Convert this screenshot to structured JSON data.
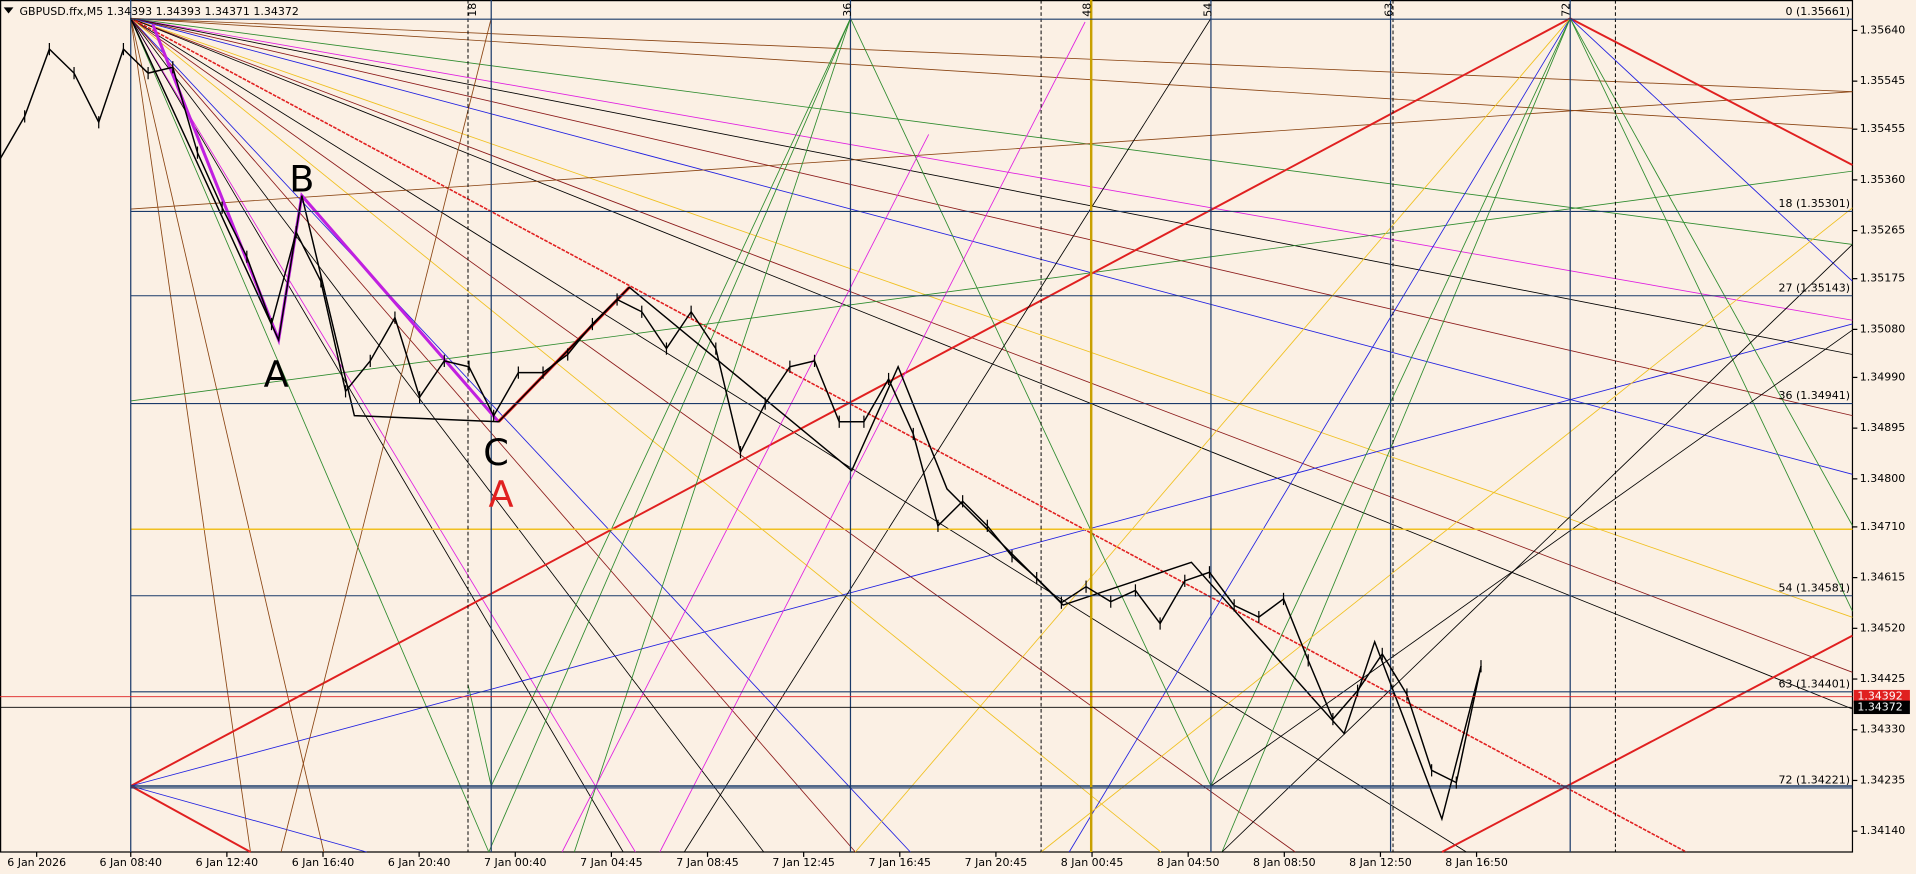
{
  "chart_data": {
    "type": "line",
    "title": "GBPUSD.ffx,M5  1.34393 1.34393 1.34371 1.34372",
    "color": "#000000",
    "values": [
      1.35399,
      1.35479,
      1.35605,
      1.3556,
      1.35468,
      1.35605,
      1.3556,
      1.35571,
      1.35411,
      1.35308,
      1.35216,
      1.3509,
      1.35262,
      1.3517,
      1.34964,
      1.35021,
      1.35102,
      1.34953,
      1.35021,
      1.3501,
      1.34918,
      1.34999,
      1.34999,
      1.35033,
      1.3509,
      1.35136,
      1.35113,
      1.35044,
      1.35113,
      1.35044,
      1.3485,
      1.34941,
      1.3501,
      1.35021,
      1.34907,
      1.34907,
      1.34987,
      1.34884,
      1.34712,
      1.34758,
      1.34712,
      1.34655,
      1.34614,
      1.34568,
      1.34598,
      1.3457,
      1.34591,
      1.34529,
      1.34609,
      1.34625,
      1.34563,
      1.34541,
      1.34575,
      1.3446,
      1.3435,
      1.34403,
      1.34472,
      1.34396,
      1.34254,
      1.34231,
      1.34449
    ],
    "x_tick_labels": [
      "6 Jan 2026",
      "6 Jan 08:40",
      "6 Jan 12:40",
      "6 Jan 16:40",
      "6 Jan 20:40",
      "7 Jan 00:40",
      "7 Jan 04:45",
      "7 Jan 08:45",
      "7 Jan 12:45",
      "7 Jan 16:45",
      "7 Jan 20:45",
      "8 Jan 00:45",
      "8 Jan 04:50",
      "8 Jan 08:50",
      "8 Jan 12:50",
      "8 Jan 16:50"
    ],
    "ylim": [
      1.34101,
      1.35697
    ],
    "yticks": [
      {
        "value": 1.3564,
        "label": "1.35640"
      },
      1.35545,
      1.35455,
      {
        "value": 1.3536,
        "label": "1.35360"
      },
      1.35265,
      1.35175,
      {
        "value": 1.3508,
        "label": "1.35080"
      },
      {
        "value": 1.3499,
        "label": "1.34990"
      },
      1.34895,
      {
        "value": 1.348,
        "label": "1.34800"
      },
      {
        "value": 1.3471,
        "label": "1.34710"
      },
      1.34615,
      {
        "value": 1.3452,
        "label": "1.34520"
      },
      1.34425,
      {
        "value": 1.3433,
        "label": "1.34330"
      },
      1.34235,
      {
        "value": 1.3414,
        "label": "1.34140"
      }
    ],
    "levels": [
      {
        "value": 1.35661,
        "label": "0 (1.35661)"
      },
      {
        "value": 1.35301,
        "label": "18 (1.35301)"
      },
      {
        "value": 1.35143,
        "label": "27 (1.35143)"
      },
      {
        "value": 1.34941,
        "label": "36 (1.34941)"
      },
      {
        "value": 1.34581,
        "label": "54 (1.34581)"
      },
      {
        "value": 1.34401,
        "label": "63 (1.34401)"
      },
      {
        "value": 1.34221,
        "label": "72 (1.34221)"
      }
    ],
    "last_prices": [
      {
        "value": 1.34392,
        "color": "#e02020"
      },
      {
        "value": 1.34372,
        "color": "#000000"
      }
    ],
    "time_markers": [
      18,
      36,
      48,
      54,
      63,
      72
    ],
    "wave_labels": [
      {
        "text": "B",
        "color": "#000000"
      },
      {
        "text": "A",
        "color": "#000000"
      },
      {
        "text": "C",
        "color": "#000000"
      },
      {
        "text": "A",
        "color": "#e02020"
      }
    ]
  }
}
